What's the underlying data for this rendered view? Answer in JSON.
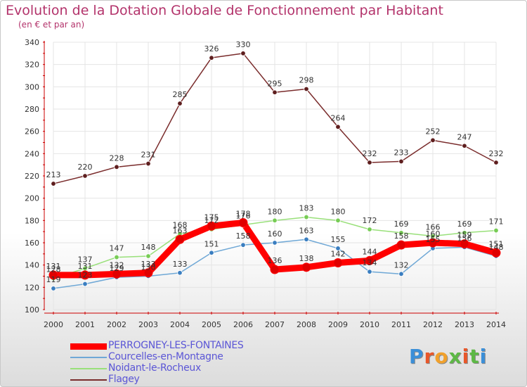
{
  "title": "Evolution de la Dotation Globale de Fonctionnement par Habitant",
  "subtitle": "(en € et par an)",
  "logo_text": "Proxiti",
  "colors": {
    "title": "#b3336b",
    "axis": "#cc0000",
    "legend_text": "#5b56d6"
  },
  "chart_data": {
    "type": "line",
    "title": "Evolution de la Dotation Globale de Fonctionnement par Habitant",
    "subtitle": "(en € et par an)",
    "xlabel": "",
    "ylabel": "",
    "ylim": [
      100,
      340
    ],
    "yticks": [
      100,
      120,
      140,
      160,
      180,
      200,
      220,
      240,
      260,
      280,
      300,
      320,
      340
    ],
    "grid": true,
    "legend_position": "bottom-left",
    "categories": [
      "2000",
      "2001",
      "2002",
      "2003",
      "2004",
      "2005",
      "2006",
      "2007",
      "2008",
      "2009",
      "2010",
      "2011",
      "2012",
      "2013",
      "2014"
    ],
    "series": [
      {
        "name": "PERROGNEY-LES-FONTAINES",
        "color": "#ff0000",
        "point_color": "#e00000",
        "values": [
          131,
          131,
          132,
          133,
          163,
          175,
          178,
          136,
          138,
          142,
          144,
          158,
          160,
          159,
          151
        ]
      },
      {
        "name": "Courcelles-en-Montagne",
        "color": "#6fa8d6",
        "point_color": "#3a7ec0",
        "values": [
          119,
          123,
          129,
          130,
          133,
          151,
          158,
          160,
          163,
          155,
          134,
          132,
          155,
          156,
          148
        ]
      },
      {
        "name": "Noidant-le-Rocheux",
        "color": "#99e07a",
        "point_color": "#77cc55",
        "values": [
          128,
          137,
          147,
          148,
          168,
          172,
          176,
          180,
          183,
          180,
          172,
          169,
          166,
          169,
          171
        ]
      },
      {
        "name": "Flagey",
        "color": "#7a2c2c",
        "point_color": "#5e1e1e",
        "values": [
          213,
          220,
          228,
          231,
          285,
          326,
          330,
          295,
          298,
          264,
          232,
          233,
          252,
          247,
          232
        ]
      }
    ]
  }
}
